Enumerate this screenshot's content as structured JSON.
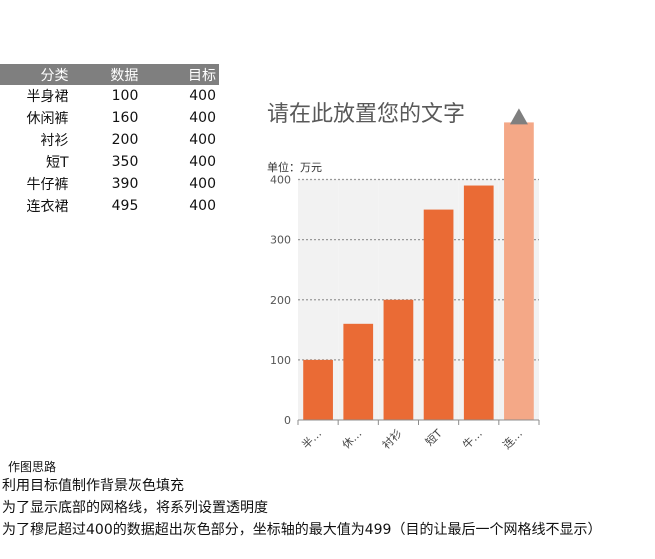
{
  "table": {
    "headers": [
      "分类",
      "数据",
      "目标"
    ],
    "rows": [
      [
        "半身裙",
        "100",
        "400"
      ],
      [
        "休闲裤",
        "160",
        "400"
      ],
      [
        "衬衫",
        "200",
        "400"
      ],
      [
        "短T",
        "350",
        "400"
      ],
      [
        "牛仔裤",
        "390",
        "400"
      ],
      [
        "连衣裙",
        "495",
        "400"
      ]
    ]
  },
  "chart_title": "请在此放置您的文字",
  "unit_label": "单位：万元",
  "notes": {
    "heading": "作图思路",
    "lines": [
      "利用目标值制作背景灰色填充",
      "为了显示底部的网格线，将系列设置透明度",
      "为了穆尼超过400的数据超出灰色部分，坐标轴的最大值为499（目的让最后一个网格线不显示）"
    ]
  },
  "colors": {
    "bar": "#ea6b35",
    "bar_highlight": "#f4a887",
    "target_fill": "#f2f2f2",
    "grid": "#999999",
    "marker": "#7f7f7f"
  },
  "chart_data": {
    "type": "bar",
    "categories": [
      "半身裙",
      "休闲裤",
      "衬衫",
      "短T",
      "牛仔裤",
      "连衣裙"
    ],
    "tick_labels": [
      "半…",
      "休…",
      "衬衫",
      "短T",
      "牛…",
      "连…"
    ],
    "series": [
      {
        "name": "数据",
        "values": [
          100,
          160,
          200,
          350,
          390,
          495
        ]
      },
      {
        "name": "目标",
        "values": [
          400,
          400,
          400,
          400,
          400,
          400
        ]
      }
    ],
    "yticks": [
      0,
      100,
      200,
      300,
      400
    ],
    "ylim": [
      0,
      499
    ],
    "grid": true,
    "legend": "none"
  }
}
